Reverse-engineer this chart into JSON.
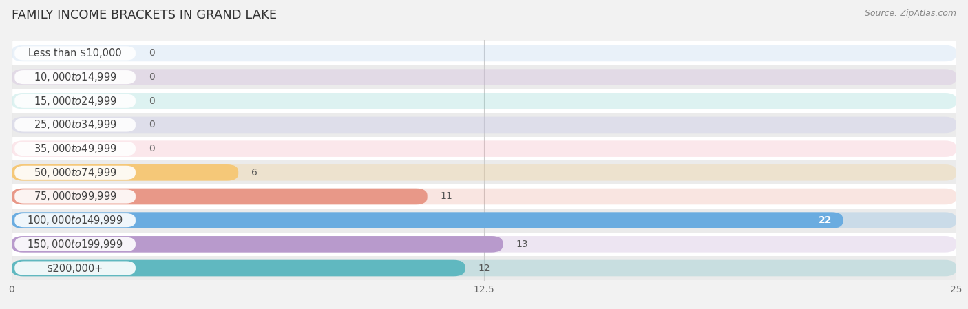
{
  "title": "FAMILY INCOME BRACKETS IN GRAND LAKE",
  "source": "Source: ZipAtlas.com",
  "categories": [
    "Less than $10,000",
    "$10,000 to $14,999",
    "$15,000 to $24,999",
    "$25,000 to $34,999",
    "$35,000 to $49,999",
    "$50,000 to $74,999",
    "$75,000 to $99,999",
    "$100,000 to $149,999",
    "$150,000 to $199,999",
    "$200,000+"
  ],
  "values": [
    0,
    0,
    0,
    0,
    0,
    6,
    11,
    22,
    13,
    12
  ],
  "bar_colors": [
    "#a8c8e8",
    "#c8a8d8",
    "#78ccc8",
    "#b8b8e8",
    "#f0a0b0",
    "#f5c878",
    "#e89888",
    "#6aace0",
    "#b89acc",
    "#60b8c0"
  ],
  "background_color": "#f2f2f2",
  "xlim": [
    0,
    25
  ],
  "xticks": [
    0,
    12.5,
    25
  ],
  "title_fontsize": 13,
  "label_fontsize": 10.5,
  "value_fontsize": 10
}
